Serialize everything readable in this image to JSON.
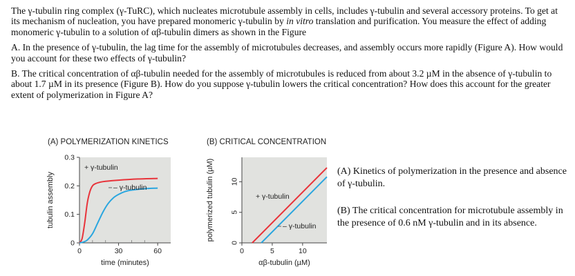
{
  "problem": {
    "intro_before_italic": "The γ-tubulin ring complex (γ-TuRC), which nucleates microtubule assembly in cells, includes γ-tubulin and several accessory proteins. To get at its mechanism of nucleation, you have prepared monomeric γ-tubulin by ",
    "intro_italic": "in vitro",
    "intro_after_italic": " translation and purification. You measure the effect of adding monomeric γ-tubulin to a solution of αβ-tubulin dimers as shown in the Figure",
    "question_a": "A. In the presence of γ-tubulin, the lag time for the assembly of microtubules decreases, and assembly occurs more rapidly (Figure A). How would you account for these two effects of γ-tubulin?",
    "question_b": "B. The critical concentration of αβ-tubulin needed for the assembly of microtubules is reduced from about 3.2 µM in the absence of γ-tubulin to about 1.7 µM in its presence (Figure B). How do you suppose γ-tubulin lowers the critical concentration? How does this account for the greater extent of polymerization in Figure A?"
  },
  "figure": {
    "panel_a_title": "(A) POLYMERIZATION KINETICS",
    "panel_b_title": "(B) CRITICAL CONCENTRATION",
    "caption_a": "(A) Kinetics of polymerization in the presence and absence of γ-tubulin.",
    "caption_b": "(B) The critical concentration for microtubule assembly in the presence of 0.6 nM γ-tubulin and in its absence."
  },
  "colors": {
    "with_gamma": "#e8333a",
    "without_gamma": "#2aa6df",
    "plot_bg": "#e1e2df"
  },
  "chart_data": [
    {
      "type": "line",
      "title": "(A) POLYMERIZATION KINETICS",
      "xlabel": "time (minutes)",
      "ylabel": "tubulin assembly",
      "xlim": [
        0,
        70
      ],
      "ylim": [
        0,
        0.3
      ],
      "xticks": [
        0,
        30,
        60
      ],
      "yticks": [
        0,
        0.1,
        0.2,
        0.3
      ],
      "grid": false,
      "series": [
        {
          "name": "+ γ-tubulin",
          "color": "#e8333a",
          "x": [
            0,
            2,
            4,
            6,
            8,
            10,
            12,
            16,
            20,
            30,
            45,
            60
          ],
          "y": [
            0,
            0.015,
            0.07,
            0.14,
            0.18,
            0.2,
            0.207,
            0.213,
            0.216,
            0.22,
            0.224,
            0.226
          ]
        },
        {
          "name": "– γ-tubulin",
          "color": "#2aa6df",
          "x": [
            0,
            3,
            6,
            10,
            14,
            18,
            22,
            26,
            30,
            35,
            40,
            50,
            60
          ],
          "y": [
            0,
            0.003,
            0.01,
            0.032,
            0.07,
            0.108,
            0.138,
            0.158,
            0.17,
            0.18,
            0.185,
            0.19,
            0.192
          ]
        }
      ]
    },
    {
      "type": "line",
      "title": "(B) CRITICAL CONCENTRATION",
      "xlabel": "αβ-tubulin (µM)",
      "ylabel": "polymerized tubulin (µM)",
      "xlim": [
        0,
        14
      ],
      "ylim": [
        0,
        14
      ],
      "xticks": [
        0,
        5,
        10
      ],
      "yticks": [
        0,
        5,
        10
      ],
      "grid": false,
      "series": [
        {
          "name": "+ γ-tubulin",
          "color": "#e8333a",
          "x": [
            1.7,
            14
          ],
          "y": [
            0,
            12.3
          ]
        },
        {
          "name": "– γ-tubulin",
          "color": "#2aa6df",
          "x": [
            3.2,
            14
          ],
          "y": [
            0,
            10.8
          ]
        }
      ]
    }
  ]
}
